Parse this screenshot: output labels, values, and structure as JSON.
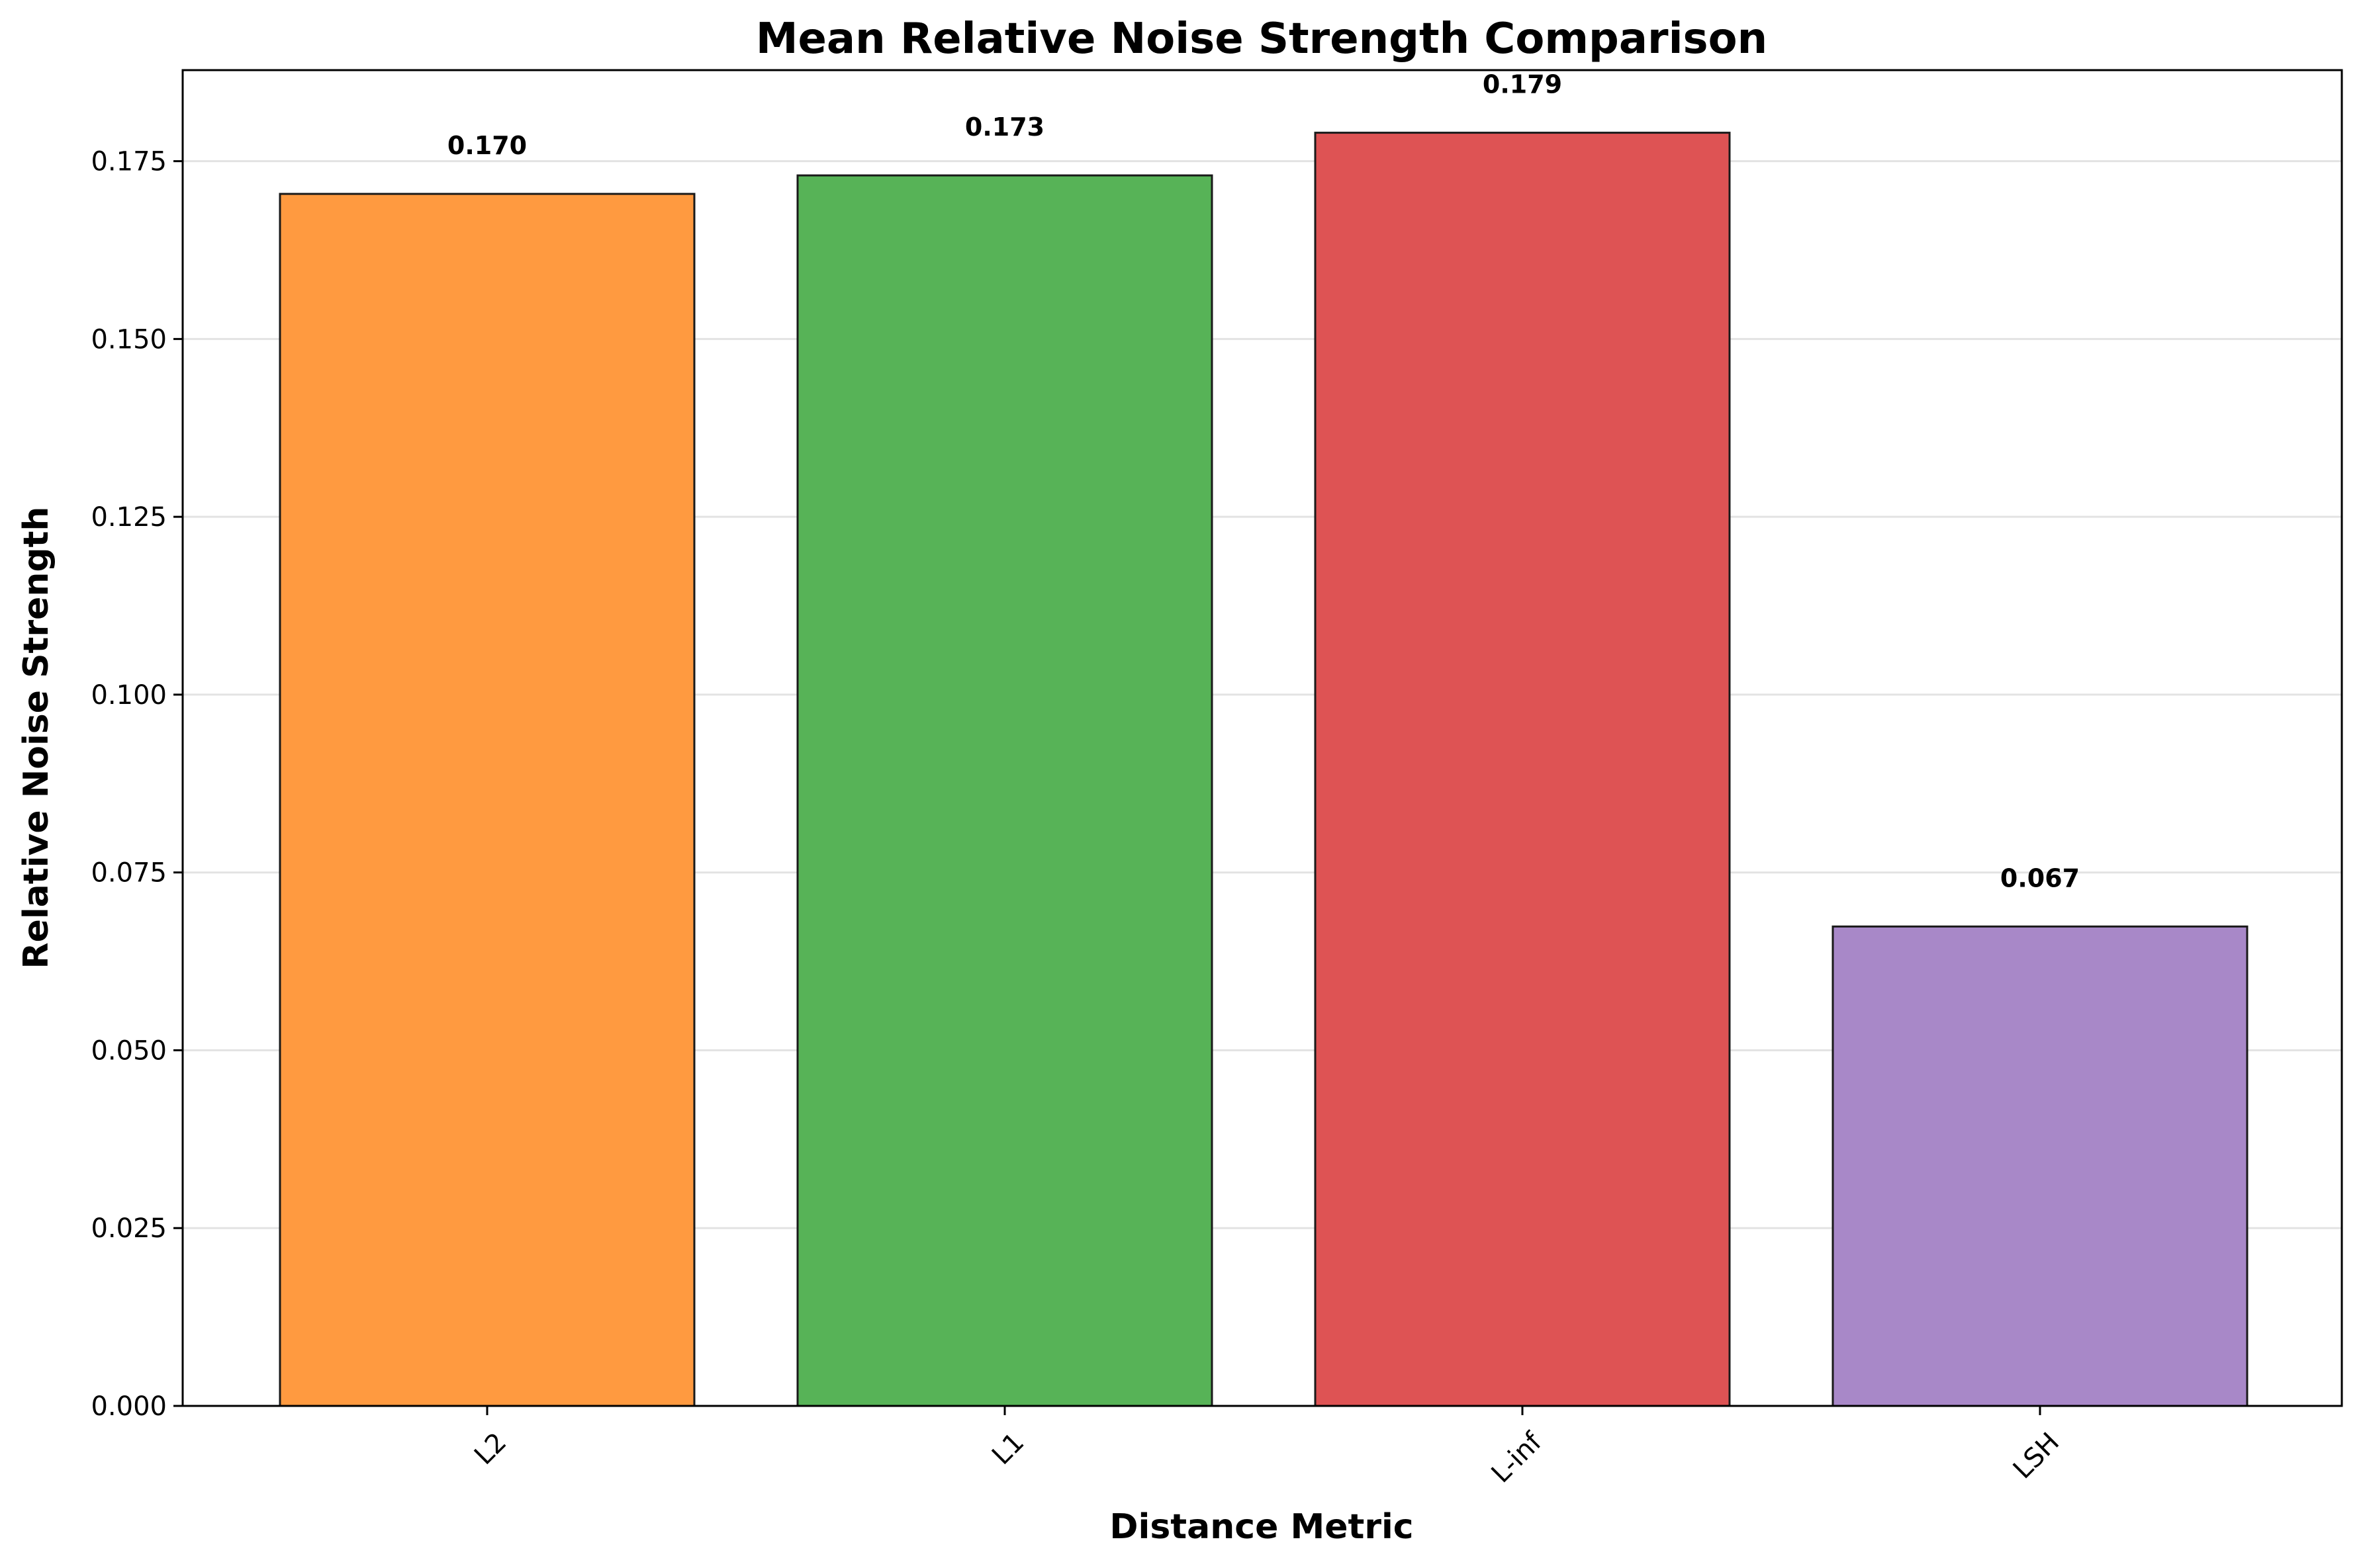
{
  "chart_data": {
    "type": "bar",
    "title": "Mean Relative Noise Strength Comparison",
    "xlabel": "Distance Metric",
    "ylabel": "Relative Noise Strength",
    "categories": [
      "L2",
      "L1",
      "L-inf",
      "LSH"
    ],
    "values": [
      0.1704,
      0.173,
      0.179,
      0.0674
    ],
    "value_labels": [
      "0.170",
      "0.173",
      "0.179",
      "0.067"
    ],
    "colors": [
      "#ff9a40",
      "#57b357",
      "#de5354",
      "#a888c8"
    ],
    "ylim": [
      0,
      0.1878
    ],
    "yticks": [
      0.0,
      0.025,
      0.05,
      0.075,
      0.1,
      0.125,
      0.15,
      0.175
    ],
    "ytick_labels": [
      "0.000",
      "0.025",
      "0.050",
      "0.075",
      "0.100",
      "0.125",
      "0.150",
      "0.175"
    ],
    "grid": "y",
    "legend": "none",
    "xtick_rotation_deg": 45
  }
}
